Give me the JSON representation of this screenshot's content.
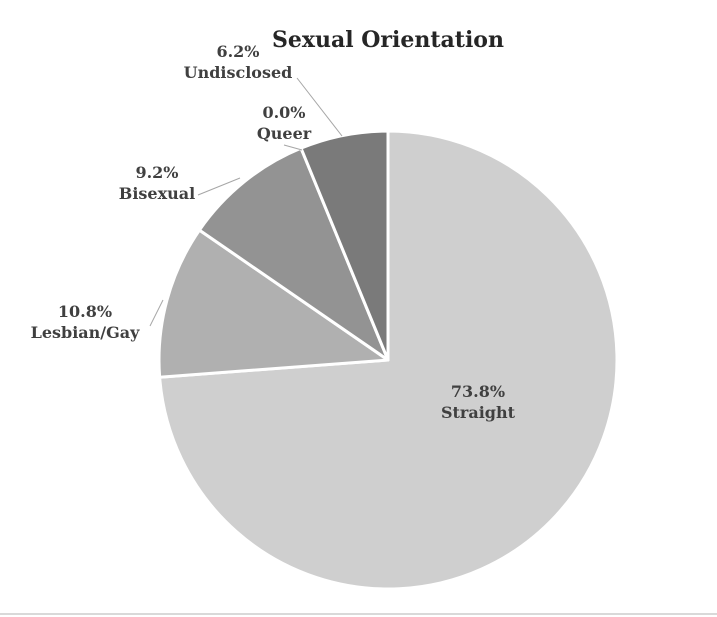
{
  "chart_data": {
    "type": "pie",
    "title": "Sexual Orientation",
    "slices": [
      {
        "label": "Straight",
        "value": 73.8,
        "value_label": "73.8%",
        "color": "#cfcfcf"
      },
      {
        "label": "Lesbian/Gay",
        "value": 10.8,
        "value_label": "10.8%",
        "color": "#b0b0b0"
      },
      {
        "label": "Bisexual",
        "value": 9.2,
        "value_label": "9.2%",
        "color": "#939393"
      },
      {
        "label": "Queer",
        "value": 0.0,
        "value_label": "0.0%",
        "color": "#858585"
      },
      {
        "label": "Undisclosed",
        "value": 6.2,
        "value_label": "6.2%",
        "color": "#7a7a7a"
      }
    ],
    "start_angle": "12 o'clock",
    "direction": "clockwise",
    "legend": "none"
  }
}
